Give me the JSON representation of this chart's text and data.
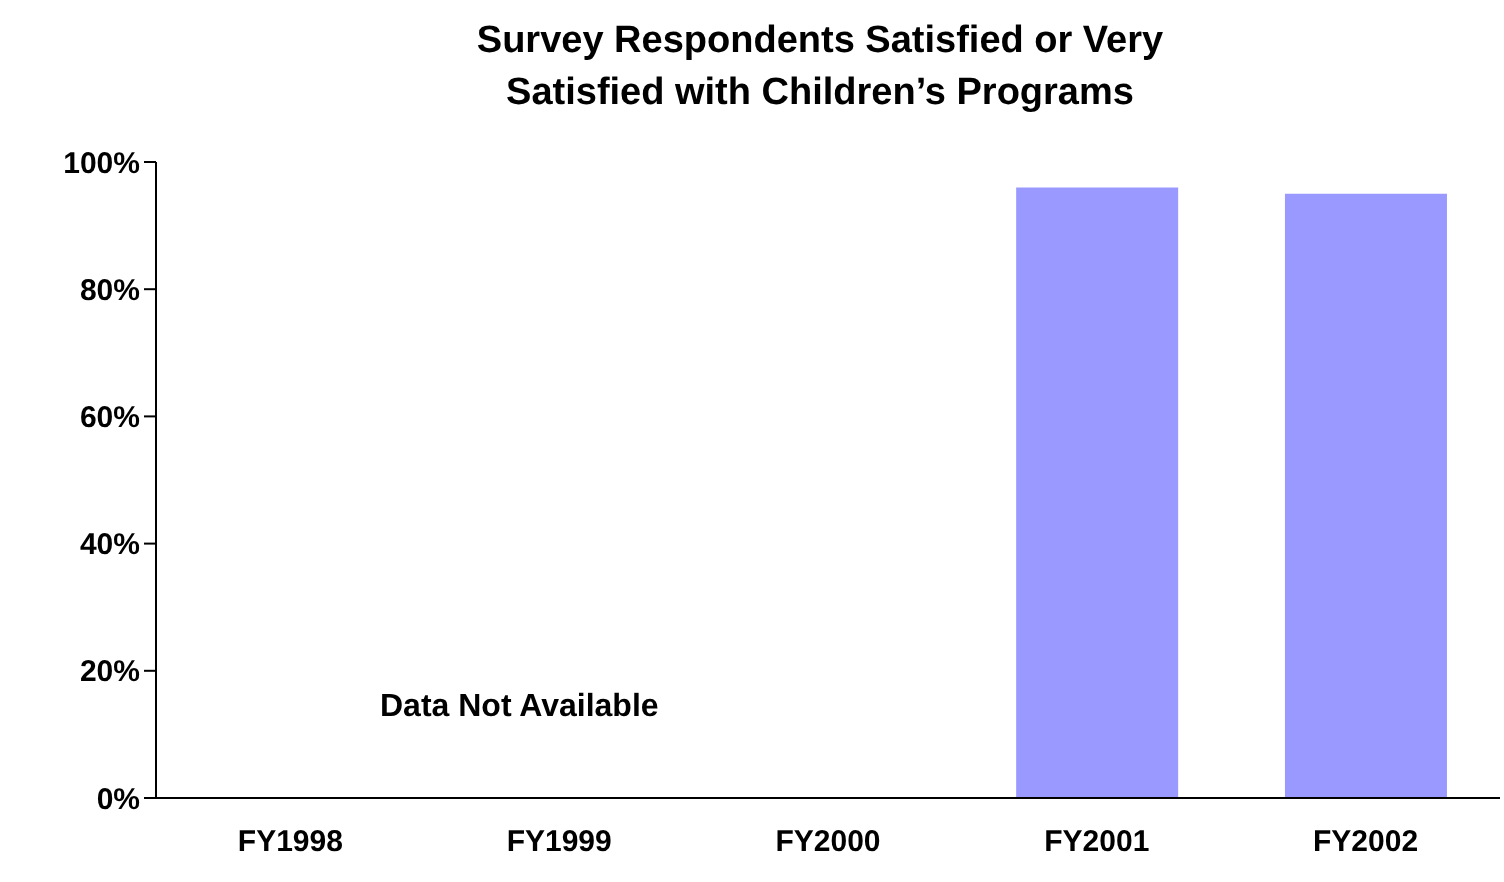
{
  "chart_data": {
    "type": "bar",
    "title": "Survey Respondents Satisfied or Very Satisfied with Children’s Programs",
    "categories": [
      "FY1998",
      "FY1999",
      "FY2000",
      "FY2001",
      "FY2002"
    ],
    "values": [
      null,
      null,
      null,
      96,
      95
    ],
    "color": "#9999ff",
    "ylim": [
      0,
      100
    ],
    "yticks": [
      {
        "value": 0,
        "label": "0%"
      },
      {
        "value": 20,
        "label": "20%"
      },
      {
        "value": 40,
        "label": "40%"
      },
      {
        "value": 60,
        "label": "60%"
      },
      {
        "value": 80,
        "label": "80%"
      },
      {
        "value": 100,
        "label": "100%"
      }
    ],
    "grid": false,
    "legend": false,
    "annotations": [
      "Data Not Available"
    ]
  }
}
